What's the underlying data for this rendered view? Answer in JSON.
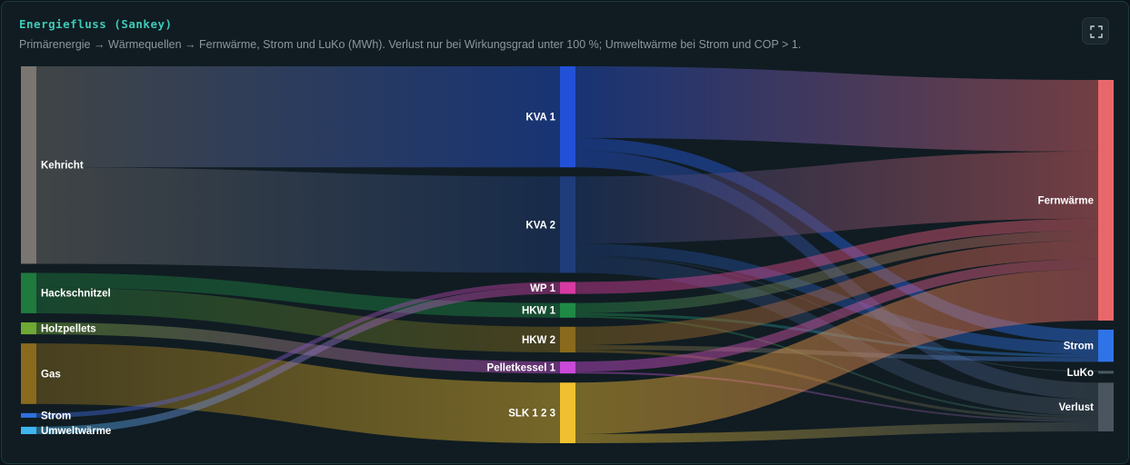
{
  "header": {
    "title": "Energiefluss (Sankey)",
    "subtitle": "Primärenergie → Wärmequellen → Fernwärme, Strom und LuKo (MWh). Verlust nur bei Wirkungsgrad unter 100 %; Umweltwärme bei Strom und COP > 1.",
    "expand_icon": "fullscreen-icon"
  },
  "chart_data": {
    "type": "sankey",
    "title": "Energiefluss (Sankey)",
    "unit": "MWh",
    "nodes": [
      {
        "id": "kehricht",
        "label": "Kehricht",
        "column": 0,
        "color": "#7a7570"
      },
      {
        "id": "hackschnitzel",
        "label": "Hackschnitzel",
        "column": 0,
        "color": "#1f7a3d"
      },
      {
        "id": "holzpellets",
        "label": "Holzpellets",
        "column": 0,
        "color": "#6fa834"
      },
      {
        "id": "gas",
        "label": "Gas",
        "column": 0,
        "color": "#8a6a1c"
      },
      {
        "id": "strom_in",
        "label": "Strom",
        "column": 0,
        "color": "#2f6fe0"
      },
      {
        "id": "umweltwaerme",
        "label": "Umweltwärme",
        "column": 0,
        "color": "#3fb4ef"
      },
      {
        "id": "kva1",
        "label": "KVA 1",
        "column": 1,
        "color": "#2251d8"
      },
      {
        "id": "kva2",
        "label": "KVA 2",
        "column": 1,
        "color": "#1f3d7a"
      },
      {
        "id": "wp1",
        "label": "WP 1",
        "column": 1,
        "color": "#d63aa0"
      },
      {
        "id": "hkw1",
        "label": "HKW 1",
        "column": 1,
        "color": "#1f8a46"
      },
      {
        "id": "hkw2",
        "label": "HKW 2",
        "column": 1,
        "color": "#8a6a1c"
      },
      {
        "id": "pellet1",
        "label": "Pelletkessel 1",
        "column": 1,
        "color": "#c94ad8"
      },
      {
        "id": "slk",
        "label": "SLK 1 2 3",
        "column": 1,
        "color": "#f0c030"
      },
      {
        "id": "fernwaerme",
        "label": "Fernwärme",
        "column": 2,
        "color": "#e8676a"
      },
      {
        "id": "strom_out",
        "label": "Strom",
        "column": 2,
        "color": "#2f73e8"
      },
      {
        "id": "luko",
        "label": "LuKo",
        "column": 2,
        "color": "#4a5a62"
      },
      {
        "id": "verlust",
        "label": "Verlust",
        "column": 2,
        "color": "#4a5560"
      }
    ],
    "links": [
      {
        "source": "kehricht",
        "target": "kva1",
        "value": 110
      },
      {
        "source": "kehricht",
        "target": "kva2",
        "value": 105
      },
      {
        "source": "hackschnitzel",
        "target": "hkw1",
        "value": 16
      },
      {
        "source": "hackschnitzel",
        "target": "hkw2",
        "value": 28
      },
      {
        "source": "holzpellets",
        "target": "pellet1",
        "value": 13
      },
      {
        "source": "gas",
        "target": "slk",
        "value": 66
      },
      {
        "source": "strom_in",
        "target": "wp1",
        "value": 5
      },
      {
        "source": "umweltwaerme",
        "target": "wp1",
        "value": 8
      },
      {
        "source": "kva1",
        "target": "fernwaerme",
        "value": 78
      },
      {
        "source": "kva1",
        "target": "strom_out",
        "value": 14
      },
      {
        "source": "kva1",
        "target": "verlust",
        "value": 18
      },
      {
        "source": "kva2",
        "target": "fernwaerme",
        "value": 73
      },
      {
        "source": "kva2",
        "target": "strom_out",
        "value": 13
      },
      {
        "source": "kva2",
        "target": "luko",
        "value": 1
      },
      {
        "source": "kva2",
        "target": "verlust",
        "value": 18
      },
      {
        "source": "wp1",
        "target": "fernwaerme",
        "value": 13
      },
      {
        "source": "hkw1",
        "target": "fernwaerme",
        "value": 11
      },
      {
        "source": "hkw1",
        "target": "strom_out",
        "value": 3
      },
      {
        "source": "hkw1",
        "target": "verlust",
        "value": 2
      },
      {
        "source": "hkw2",
        "target": "fernwaerme",
        "value": 20
      },
      {
        "source": "hkw2",
        "target": "strom_out",
        "value": 5
      },
      {
        "source": "hkw2",
        "target": "verlust",
        "value": 3
      },
      {
        "source": "pellet1",
        "target": "fernwaerme",
        "value": 11
      },
      {
        "source": "pellet1",
        "target": "verlust",
        "value": 2
      },
      {
        "source": "slk",
        "target": "fernwaerme",
        "value": 56
      },
      {
        "source": "slk",
        "target": "verlust",
        "value": 10
      }
    ]
  }
}
